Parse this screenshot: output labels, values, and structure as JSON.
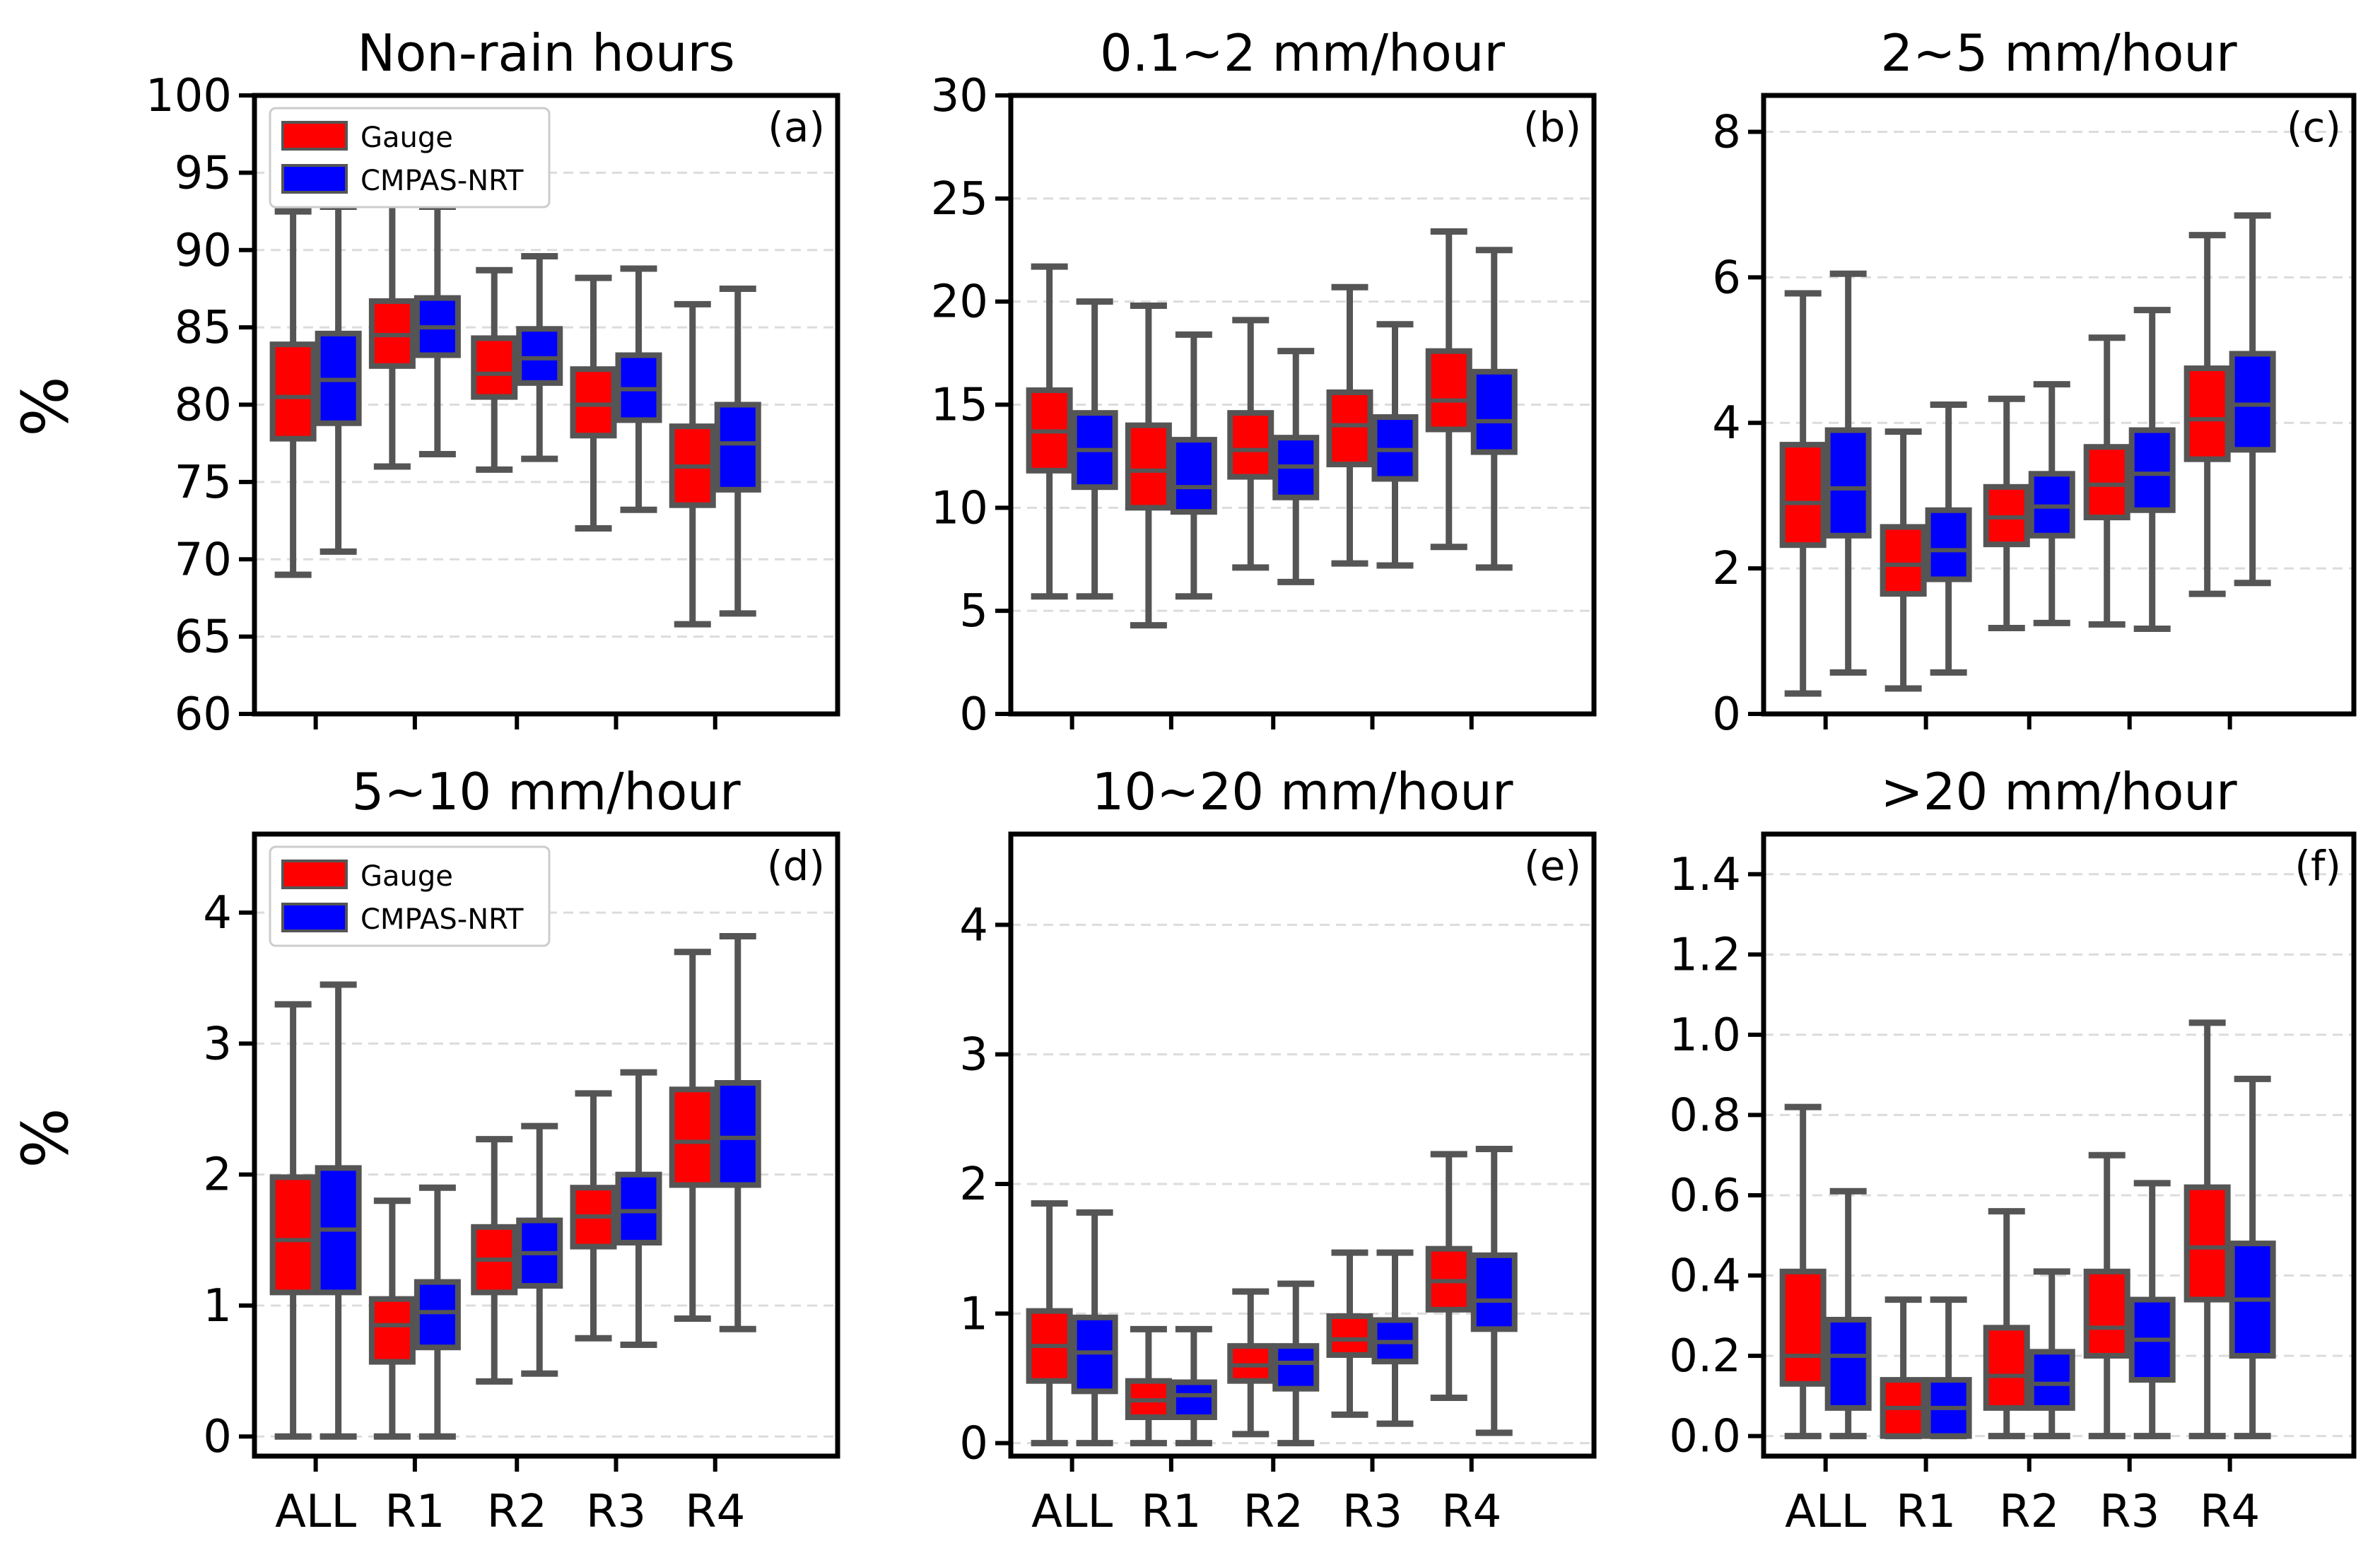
{
  "figure": {
    "ylabel_top": "%",
    "ylabel_bottom": "%"
  },
  "colors": {
    "gauge": "#ff0000",
    "cmpas": "#0000ff"
  },
  "legend": {
    "gauge": "Gauge",
    "cmpas": "CMPAS-NRT"
  },
  "chart_data": [
    {
      "type": "box",
      "title": "Non-rain hours",
      "letter": "(a)",
      "ylim": [
        60,
        100
      ],
      "yticks": [
        "60",
        "65",
        "70",
        "75",
        "80",
        "85",
        "90",
        "95",
        "100"
      ],
      "categories": [
        "ALL",
        "R1",
        "R2",
        "R3",
        "R4"
      ],
      "show_legend": true,
      "series": [
        {
          "name": "Gauge",
          "boxes": [
            [
              69,
              77.8,
              80.5,
              83.9,
              92.5
            ],
            [
              76,
              82.5,
              84.5,
              86.7,
              93.2
            ],
            [
              75.8,
              80.5,
              82,
              84.3,
              88.7
            ],
            [
              72,
              78,
              80,
              82.3,
              88.2
            ],
            [
              65.8,
              73.5,
              76,
              78.6,
              86.5
            ]
          ]
        },
        {
          "name": "CMPAS-NRT",
          "boxes": [
            [
              70.5,
              78.8,
              81.6,
              84.6,
              92.8
            ],
            [
              76.8,
              83.2,
              85,
              86.9,
              92.8
            ],
            [
              76.5,
              81.4,
              83,
              84.9,
              89.6
            ],
            [
              73.2,
              79,
              81,
              83.2,
              88.8
            ],
            [
              66.5,
              74.5,
              77.5,
              80,
              87.5
            ]
          ]
        }
      ]
    },
    {
      "type": "box",
      "title": "0.1~2 mm/hour",
      "letter": "(b)",
      "ylim": [
        0,
        30
      ],
      "yticks": [
        "0",
        "5",
        "10",
        "15",
        "20",
        "25",
        "30"
      ],
      "categories": [
        "ALL",
        "R1",
        "R2",
        "R3",
        "R4"
      ],
      "show_legend": false,
      "series": [
        {
          "name": "Gauge",
          "boxes": [
            [
              5.7,
              11.8,
              13.7,
              15.7,
              21.7
            ],
            [
              4.3,
              10,
              11.8,
              14,
              19.8
            ],
            [
              7.1,
              11.5,
              12.8,
              14.6,
              19.1
            ],
            [
              7.3,
              12.1,
              14,
              15.6,
              20.7
            ],
            [
              8.1,
              13.8,
              15.2,
              17.6,
              23.4
            ]
          ]
        },
        {
          "name": "CMPAS-NRT",
          "boxes": [
            [
              5.7,
              11,
              12.8,
              14.6,
              20
            ],
            [
              5.7,
              9.8,
              11,
              13.3,
              18.4
            ],
            [
              6.4,
              10.5,
              12,
              13.4,
              17.6
            ],
            [
              7.2,
              11.4,
              12.8,
              14.4,
              18.9
            ],
            [
              7.1,
              12.7,
              14.2,
              16.6,
              22.5
            ]
          ]
        }
      ]
    },
    {
      "type": "box",
      "title": "2~5 mm/hour",
      "letter": "(c)",
      "ylim": [
        0,
        8.5
      ],
      "yticks": [
        "0",
        "2",
        "4",
        "6",
        "8"
      ],
      "ytick_values": [
        0,
        2,
        4,
        6,
        8
      ],
      "categories": [
        "ALL",
        "R1",
        "R2",
        "R3",
        "R4"
      ],
      "show_legend": false,
      "series": [
        {
          "name": "Gauge",
          "boxes": [
            [
              0.28,
              2.32,
              2.9,
              3.7,
              5.78
            ],
            [
              0.35,
              1.65,
              2.05,
              2.57,
              3.88
            ],
            [
              1.18,
              2.33,
              2.7,
              3.12,
              4.33
            ],
            [
              1.23,
              2.7,
              3.15,
              3.67,
              5.17
            ],
            [
              1.65,
              3.5,
              4.05,
              4.75,
              6.58
            ]
          ]
        },
        {
          "name": "CMPAS-NRT",
          "boxes": [
            [
              0.57,
              2.45,
              3.1,
              3.9,
              6.05
            ],
            [
              0.57,
              1.85,
              2.25,
              2.8,
              4.25
            ],
            [
              1.25,
              2.45,
              2.85,
              3.3,
              4.53
            ],
            [
              1.17,
              2.8,
              3.3,
              3.9,
              5.55
            ],
            [
              1.8,
              3.63,
              4.25,
              4.95,
              6.85
            ]
          ]
        }
      ]
    },
    {
      "type": "box",
      "title": "5~10 mm/hour",
      "letter": "(d)",
      "ylim": [
        -0.15,
        4.6
      ],
      "yticks": [
        "0",
        "1",
        "2",
        "3",
        "4"
      ],
      "ytick_values": [
        0,
        1,
        2,
        3,
        4
      ],
      "categories": [
        "ALL",
        "R1",
        "R2",
        "R3",
        "R4"
      ],
      "show_legend": true,
      "series": [
        {
          "name": "Gauge",
          "boxes": [
            [
              0,
              1.1,
              1.5,
              1.98,
              3.3
            ],
            [
              0,
              0.57,
              0.85,
              1.05,
              1.8
            ],
            [
              0.42,
              1.1,
              1.35,
              1.6,
              2.27
            ],
            [
              0.75,
              1.45,
              1.68,
              1.9,
              2.62
            ],
            [
              0.9,
              1.92,
              2.25,
              2.65,
              3.7
            ]
          ]
        },
        {
          "name": "CMPAS-NRT",
          "boxes": [
            [
              0,
              1.1,
              1.58,
              2.05,
              3.45
            ],
            [
              0,
              0.68,
              0.95,
              1.18,
              1.9
            ],
            [
              0.48,
              1.15,
              1.4,
              1.65,
              2.37
            ],
            [
              0.7,
              1.48,
              1.72,
              2,
              2.78
            ],
            [
              0.82,
              1.92,
              2.28,
              2.7,
              3.82
            ]
          ]
        }
      ]
    },
    {
      "type": "box",
      "title": "10~20 mm/hour",
      "letter": "(e)",
      "ylim": [
        -0.1,
        4.7
      ],
      "yticks": [
        "0",
        "1",
        "2",
        "3",
        "4"
      ],
      "ytick_values": [
        0,
        1,
        2,
        3,
        4
      ],
      "categories": [
        "ALL",
        "R1",
        "R2",
        "R3",
        "R4"
      ],
      "show_legend": false,
      "series": [
        {
          "name": "Gauge",
          "boxes": [
            [
              0,
              0.48,
              0.75,
              1.02,
              1.85
            ],
            [
              0,
              0.2,
              0.33,
              0.48,
              0.88
            ],
            [
              0.07,
              0.48,
              0.6,
              0.75,
              1.17
            ],
            [
              0.22,
              0.68,
              0.8,
              0.98,
              1.47
            ],
            [
              0.35,
              1.03,
              1.25,
              1.5,
              2.23
            ]
          ]
        },
        {
          "name": "CMPAS-NRT",
          "boxes": [
            [
              0,
              0.4,
              0.7,
              0.97,
              1.78
            ],
            [
              0,
              0.2,
              0.37,
              0.47,
              0.88
            ],
            [
              0,
              0.42,
              0.62,
              0.75,
              1.23
            ],
            [
              0.15,
              0.63,
              0.78,
              0.95,
              1.47
            ],
            [
              0.08,
              0.88,
              1.1,
              1.45,
              2.27
            ]
          ]
        }
      ]
    },
    {
      "type": "box",
      "title": ">20 mm/hour",
      "letter": "(f)",
      "ylim": [
        -0.05,
        1.5
      ],
      "yticks": [
        "0.0",
        "0.2",
        "0.4",
        "0.6",
        "0.8",
        "1.0",
        "1.2",
        "1.4"
      ],
      "ytick_values": [
        0,
        0.2,
        0.4,
        0.6,
        0.8,
        1.0,
        1.2,
        1.4
      ],
      "categories": [
        "ALL",
        "R1",
        "R2",
        "R3",
        "R4"
      ],
      "show_legend": false,
      "series": [
        {
          "name": "Gauge",
          "boxes": [
            [
              0,
              0.13,
              0.2,
              0.41,
              0.82
            ],
            [
              0,
              0,
              0.07,
              0.14,
              0.34
            ],
            [
              0,
              0.07,
              0.15,
              0.27,
              0.56
            ],
            [
              0,
              0.2,
              0.27,
              0.41,
              0.7
            ],
            [
              0,
              0.34,
              0.47,
              0.62,
              1.03
            ]
          ]
        },
        {
          "name": "CMPAS-NRT",
          "boxes": [
            [
              0,
              0.07,
              0.2,
              0.29,
              0.61
            ],
            [
              0,
              0,
              0.07,
              0.14,
              0.34
            ],
            [
              0,
              0.07,
              0.13,
              0.21,
              0.41
            ],
            [
              0,
              0.14,
              0.24,
              0.34,
              0.63
            ],
            [
              0,
              0.2,
              0.34,
              0.48,
              0.89
            ]
          ]
        }
      ]
    }
  ]
}
